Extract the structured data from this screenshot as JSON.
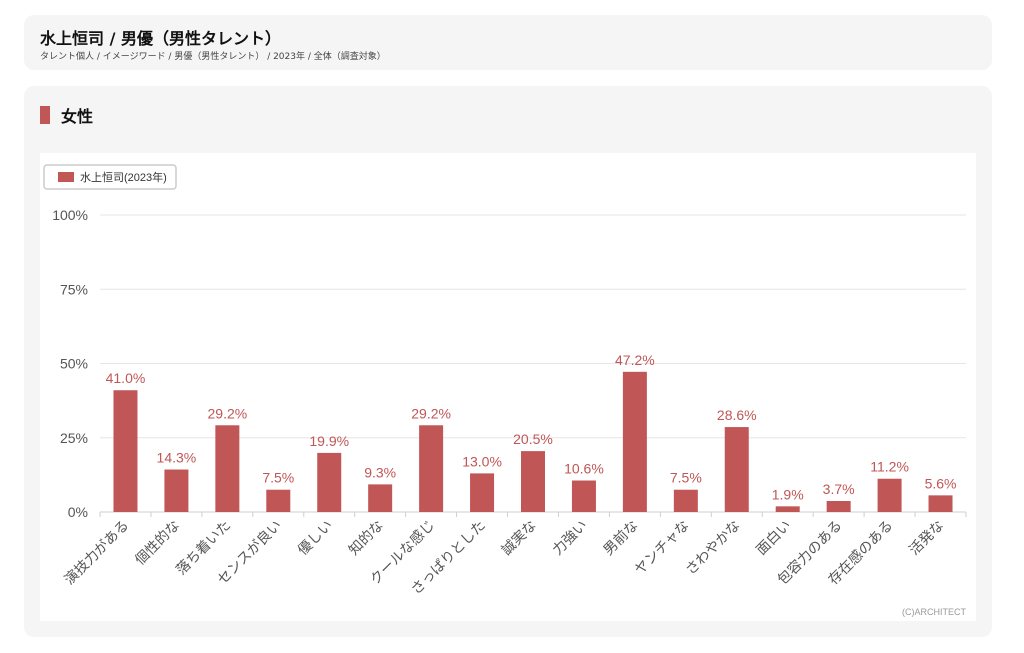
{
  "header": {
    "title": "水上恒司 / 男優（男性タレント）",
    "breadcrumb": "タレント個人 / イメージワード / 男優（男性タレント） / 2023年 / 全体（調査対象）"
  },
  "section": {
    "title": "女性"
  },
  "colors": {
    "bar": "#c05656",
    "accent": "#c05656"
  },
  "copyright": "(C)ARCHITECT",
  "chart_data": {
    "type": "bar",
    "categories": [
      "演技力がある",
      "個性的な",
      "落ち着いた",
      "センスが良い",
      "優しい",
      "知的な",
      "クールな感じ",
      "さっぱりとした",
      "誠実な",
      "力強い",
      "男前な",
      "ヤンチャな",
      "さわやかな",
      "面白い",
      "包容力のある",
      "存在感のある",
      "活発な"
    ],
    "series": [
      {
        "name": "水上恒司(2023年)",
        "values": [
          41.0,
          14.3,
          29.2,
          7.5,
          19.9,
          9.3,
          29.2,
          13.0,
          20.5,
          10.6,
          47.2,
          7.5,
          28.6,
          1.9,
          3.7,
          11.2,
          5.6
        ]
      }
    ],
    "value_labels": [
      "41.0%",
      "14.3%",
      "29.2%",
      "7.5%",
      "19.9%",
      "9.3%",
      "29.2%",
      "13.0%",
      "20.5%",
      "10.6%",
      "47.2%",
      "7.5%",
      "28.6%",
      "1.9%",
      "3.7%",
      "11.2%",
      "5.6%"
    ],
    "yticks": [
      0,
      25,
      50,
      75,
      100
    ],
    "ytick_labels": [
      "0%",
      "25%",
      "50%",
      "75%",
      "100%"
    ],
    "ylim": [
      0,
      100
    ],
    "grid": true,
    "legend": "top-left"
  }
}
